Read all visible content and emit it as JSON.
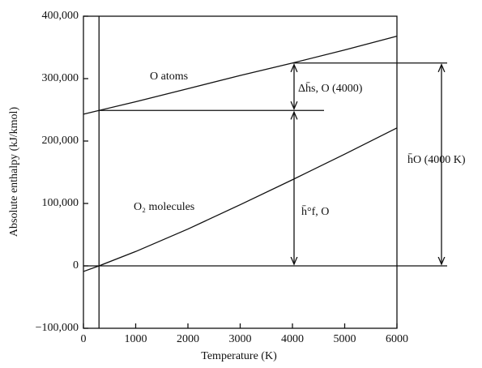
{
  "chart_data": {
    "type": "line",
    "xlabel": "Temperature (K)",
    "ylabel": "Absolute enthalpy (kJ/kmol)",
    "x": [
      0,
      298,
      1000,
      2000,
      3000,
      4000,
      5000,
      6000
    ],
    "series": [
      {
        "name": "O atoms",
        "color": "#111111",
        "values": [
          243000,
          249000,
          263000,
          284000,
          305000,
          325000,
          346000,
          368000
        ]
      },
      {
        "name": "O₂ molecules",
        "color": "#111111",
        "values": [
          -9000,
          0,
          23000,
          59000,
          98000,
          138000,
          179000,
          221000
        ]
      }
    ],
    "annotations": [
      "Δh̄s, O (4000)",
      "h̄°f, O",
      "h̄O (4000 K)"
    ],
    "xlim": [
      0,
      6000
    ],
    "xticks": [
      0,
      1000,
      2000,
      3000,
      4000,
      5000,
      6000
    ],
    "ylim": [
      -100000,
      400000
    ],
    "yticks": [
      {
        "value": -100000,
        "label": "−100,000"
      },
      0,
      {
        "value": 100000,
        "label": "100,000"
      },
      {
        "value": 200000,
        "label": "200,000"
      },
      {
        "value": 300000,
        "label": "300,000"
      },
      {
        "value": 400000,
        "label": "400,000"
      }
    ]
  }
}
